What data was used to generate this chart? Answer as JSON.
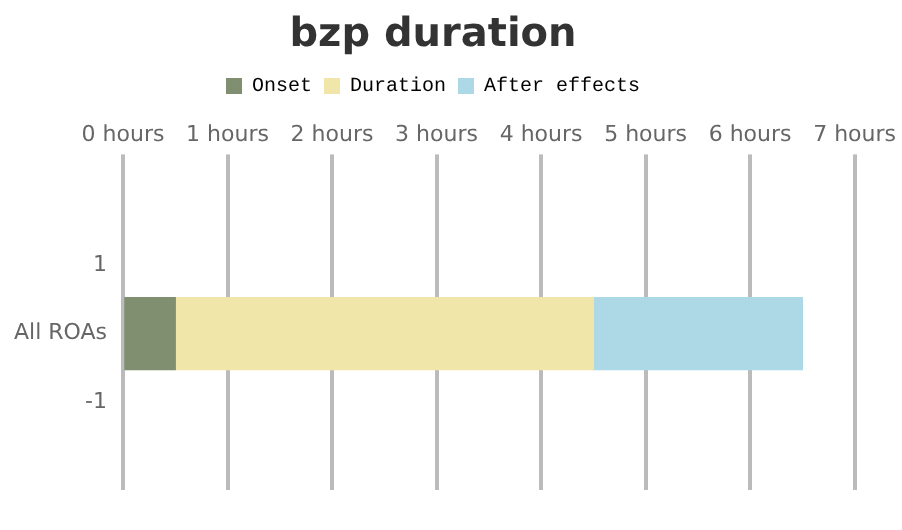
{
  "chart_data": {
    "type": "bar",
    "title": "bzp duration",
    "orientation": "horizontal",
    "stacked": true,
    "categories": [
      "All ROAs"
    ],
    "series": [
      {
        "name": "Onset",
        "color": "#7f8f6f",
        "values": [
          0.5
        ]
      },
      {
        "name": "Duration",
        "color": "#f0e6aa",
        "values": [
          4
        ]
      },
      {
        "name": "After effects",
        "color": "#add8e6",
        "values": [
          2
        ]
      }
    ],
    "xlim": [
      0,
      7
    ],
    "xticks": [
      {
        "value": 0,
        "label": "0 hours"
      },
      {
        "value": 1,
        "label": "1 hours"
      },
      {
        "value": 2,
        "label": "2 hours"
      },
      {
        "value": 3,
        "label": "3 hours"
      },
      {
        "value": 4,
        "label": "4 hours"
      },
      {
        "value": 5,
        "label": "5 hours"
      },
      {
        "value": 6,
        "label": "6 hours"
      },
      {
        "value": 7,
        "label": "7 hours"
      }
    ],
    "annotations": [
      "1",
      "-1"
    ],
    "grid": "x",
    "legend": "top"
  }
}
